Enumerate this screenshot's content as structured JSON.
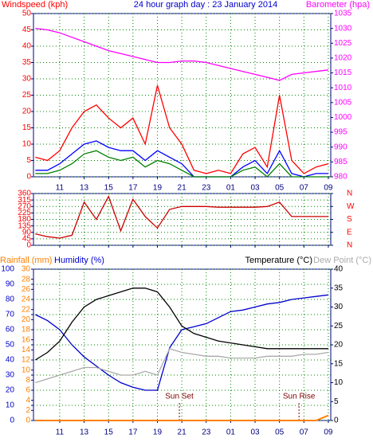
{
  "chart_data": [
    {
      "type": "line",
      "title": "24 hour graph day : 23 January 2014",
      "ylabel": "Windspeed (kph)",
      "xlim": [
        8.85,
        33.2
      ],
      "xticks": [
        11,
        13,
        15,
        17,
        19,
        21,
        23,
        {
          "value": 25,
          "label": "01"
        },
        {
          "value": 27,
          "label": "03"
        },
        {
          "value": 29,
          "label": "05"
        },
        {
          "value": 31,
          "label": "07"
        },
        {
          "value": 33,
          "label": "09"
        }
      ],
      "ylim": [
        0,
        50
      ],
      "yticks": [
        0,
        5,
        10,
        15,
        20,
        25,
        30,
        35,
        40,
        45,
        50
      ],
      "ytick_color": "#ff0000",
      "y2lim": [
        980,
        1035
      ],
      "y2ticks": [
        980,
        985,
        990,
        995,
        1000,
        1005,
        1010,
        1015,
        1020,
        1025,
        1030,
        1035
      ],
      "y2tick_color": "#ff00ff",
      "grid": true,
      "x": [
        9,
        10,
        11,
        12,
        13,
        14,
        15,
        16,
        17,
        18,
        19,
        20,
        21,
        22,
        23,
        24,
        25,
        26,
        27,
        28,
        29,
        30,
        31,
        32,
        33
      ],
      "series": [
        {
          "color": "#ff0000",
          "values": [
            6,
            5,
            8,
            15,
            20,
            22,
            18,
            15,
            18,
            10,
            28,
            15,
            10,
            2,
            1,
            2,
            1,
            7,
            9,
            3,
            25,
            5,
            1,
            3,
            4
          ]
        },
        {
          "color": "#0000ff",
          "values": [
            2,
            2,
            4,
            7,
            10,
            11,
            9,
            8,
            8,
            5,
            8,
            6,
            4,
            0,
            0,
            0,
            0,
            3,
            5,
            1,
            8,
            1,
            0,
            1,
            1
          ]
        },
        {
          "color": "#008000",
          "values": [
            1,
            1,
            2,
            4,
            7,
            8,
            6,
            5,
            6,
            3,
            5,
            4,
            2,
            0,
            0,
            0,
            0,
            2,
            3,
            0,
            4,
            0,
            0,
            0,
            0
          ]
        },
        {
          "name": "Barometer (hpa)",
          "color": "#ff00ff",
          "axis": "y2",
          "values": [
            1030,
            1029.5,
            1028.5,
            1027,
            1025.5,
            1024,
            1022.5,
            1021.5,
            1020.5,
            1019.5,
            1018.5,
            1018.5,
            1019,
            1019,
            1018.5,
            1017.5,
            1016.5,
            1015.5,
            1014.5,
            1013.5,
            1012.5,
            1014.5,
            1015,
            1015.5,
            1016
          ]
        }
      ]
    },
    {
      "type": "line",
      "xlim": [
        8.85,
        33.2
      ],
      "xticks": [
        11,
        13,
        15,
        17,
        19,
        21,
        23,
        {
          "value": 25,
          "label": "01"
        },
        {
          "value": 27,
          "label": "03"
        },
        {
          "value": 29,
          "label": "05"
        },
        {
          "value": 31,
          "label": "07"
        },
        {
          "value": 33,
          "label": "09"
        }
      ],
      "ylim": [
        0,
        360
      ],
      "yticks": [
        0,
        45,
        90,
        135,
        180,
        225,
        270,
        315,
        360
      ],
      "ytick_color": "#ff0000",
      "y2lim": [
        0,
        360
      ],
      "y2ticks": [
        {
          "value": 0,
          "label": "N"
        },
        {
          "value": 90,
          "label": "E"
        },
        {
          "value": 180,
          "label": "S"
        },
        {
          "value": 270,
          "label": "W"
        },
        {
          "value": 360,
          "label": "N"
        }
      ],
      "y2tick_color": "#ff0000",
      "grid": true,
      "x": [
        9,
        10,
        11,
        12,
        13,
        14,
        15,
        16,
        17,
        18,
        19,
        20,
        21,
        22,
        23,
        24,
        25,
        26,
        27,
        28,
        29,
        30,
        31,
        32,
        33
      ],
      "series": [
        {
          "color": "#cc0000",
          "values": [
            80,
            60,
            50,
            70,
            300,
            180,
            340,
            100,
            320,
            200,
            120,
            250,
            270,
            270,
            270,
            265,
            265,
            265,
            265,
            270,
            300,
            200,
            200,
            200,
            200
          ]
        }
      ]
    },
    {
      "type": "line",
      "xlim": [
        8.85,
        33.2
      ],
      "xticks": [
        11,
        13,
        15,
        17,
        19,
        21,
        23,
        {
          "value": 25,
          "label": "01"
        },
        {
          "value": 27,
          "label": "03"
        },
        {
          "value": 29,
          "label": "05"
        },
        {
          "value": 31,
          "label": "07"
        },
        {
          "value": 33,
          "label": "09"
        }
      ],
      "ylim": [
        0,
        100
      ],
      "yticks": [
        0,
        10,
        20,
        30,
        40,
        50,
        60,
        70,
        80,
        90,
        100
      ],
      "ytick_color": "#0000cc",
      "y3lim": [
        0,
        30
      ],
      "y3ticks": [
        0,
        2,
        4,
        6,
        8,
        10,
        12,
        14,
        16,
        18,
        20,
        22,
        24,
        26,
        28,
        30
      ],
      "y3tick_color": "#ff8000",
      "y2lim": [
        0,
        40
      ],
      "y2ticks": [
        0,
        5,
        10,
        15,
        20,
        25,
        30,
        35,
        40
      ],
      "y2tick_color": "#000000",
      "grid": true,
      "annotations": [
        {
          "text": "Sun Set",
          "x": 20.8
        },
        {
          "text": "Sun Rise",
          "x": 30.6
        }
      ],
      "x": [
        9,
        10,
        11,
        12,
        13,
        14,
        15,
        16,
        17,
        18,
        19,
        20,
        21,
        22,
        23,
        24,
        25,
        26,
        27,
        28,
        29,
        30,
        31,
        32,
        33
      ],
      "series": [
        {
          "name": "Humidity (%)",
          "color": "#0000cc",
          "values": [
            70,
            66,
            60,
            50,
            42,
            36,
            30,
            25,
            22,
            20,
            20,
            48,
            60,
            62,
            64,
            68,
            72,
            73,
            75,
            77,
            78,
            80,
            81,
            82,
            83
          ]
        },
        {
          "name": "Temperature (°C)",
          "color": "#000000",
          "axis": "y2",
          "values": [
            16,
            18,
            21,
            26,
            30,
            32,
            33,
            34,
            35,
            35,
            34,
            30,
            25,
            23,
            22,
            21,
            20.5,
            20,
            19.5,
            19,
            19,
            19,
            19,
            19,
            19
          ]
        },
        {
          "name": "Dew Point (°C)",
          "color": "#aaaaaa",
          "axis": "y2",
          "values": [
            10,
            11,
            12,
            13,
            14,
            14,
            13,
            12,
            12,
            13,
            12,
            19,
            18,
            17.5,
            17,
            17,
            16.5,
            16.5,
            16.5,
            17,
            17,
            17,
            17.5,
            17.5,
            18
          ]
        },
        {
          "name": "Rainfall (mm)",
          "color": "#ff8000",
          "axis": "y3",
          "values": [
            0,
            0,
            0,
            0,
            0,
            0,
            0,
            0,
            0,
            0,
            0,
            0,
            0,
            0,
            0,
            0,
            0,
            0,
            0,
            0,
            0,
            0,
            0,
            0,
            1
          ]
        }
      ]
    }
  ]
}
